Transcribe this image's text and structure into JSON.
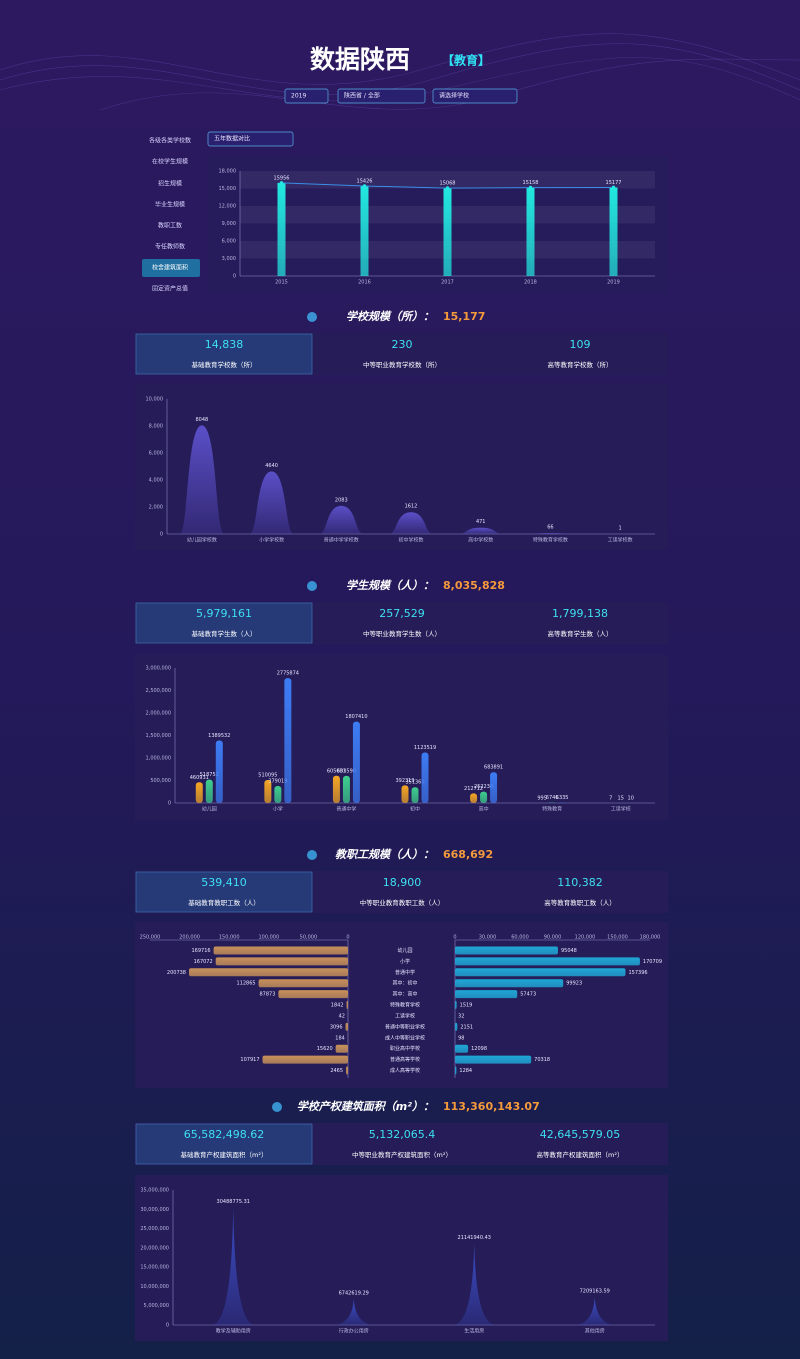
{
  "header": {
    "title": "数据陕西",
    "tag": "【教育】",
    "filters": [
      "2019",
      "陕西省 / 全部",
      "请选择学校"
    ]
  },
  "menu": {
    "items": [
      "各级各类学校数",
      "在校学生规模",
      "招生规模",
      "毕业生规模",
      "教职工数",
      "专任教师数",
      "校舍建筑面积",
      "固定资产总值"
    ],
    "active": 6,
    "compare": "五年数据对比"
  },
  "sections": [
    {
      "title": "学校规模（所）：",
      "total": "15,177",
      "cards": [
        {
          "value": "14,838",
          "label": "基础教育学校数（所）"
        },
        {
          "value": "230",
          "label": "中等职业教育学校数（所）"
        },
        {
          "value": "109",
          "label": "高等教育学校数（所）"
        }
      ]
    },
    {
      "title": "学生规模（人）：",
      "total": "8,035,828",
      "cards": [
        {
          "value": "5,979,161",
          "label": "基础教育学生数（人）"
        },
        {
          "value": "257,529",
          "label": "中等职业教育学生数（人）"
        },
        {
          "value": "1,799,138",
          "label": "高等教育学生数（人）"
        }
      ]
    },
    {
      "title": "教职工规模（人）：",
      "total": "668,692",
      "cards": [
        {
          "value": "539,410",
          "label": "基础教育教职工数（人）"
        },
        {
          "value": "18,900",
          "label": "中等职业教育教职工数（人）"
        },
        {
          "value": "110,382",
          "label": "高等教育教职工数（人）"
        }
      ]
    },
    {
      "title": "学校产权建筑面积（m²）：",
      "total": "113,360,143.07",
      "cards": [
        {
          "value": "65,582,498.62",
          "label": "基础教育产权建筑面积（m²）"
        },
        {
          "value": "5,132,065.4",
          "label": "中等职业教育产权建筑面积（m²）"
        },
        {
          "value": "42,645,579.05",
          "label": "高等教育产权建筑面积（m²）"
        }
      ]
    }
  ],
  "chart_data": [
    {
      "type": "bar",
      "categories": [
        "2015",
        "2016",
        "2017",
        "2018",
        "2019"
      ],
      "values": [
        15956,
        15426,
        15068,
        15158,
        15177
      ],
      "color": "#22e8e0",
      "line_color": "#3a8ee6",
      "line": true,
      "grid": true,
      "ylim": [
        0,
        18000
      ],
      "yticks": [
        0,
        {
          "value": 3000,
          "label": "3,000"
        },
        {
          "value": 6000,
          "label": "6,000"
        },
        {
          "value": 9000,
          "label": "9,000"
        },
        {
          "value": 12000,
          "label": "12,000"
        },
        {
          "value": 15000,
          "label": "15,000"
        },
        {
          "value": 18000,
          "label": "18,000"
        }
      ]
    },
    {
      "type": "pictorial",
      "symbol": "bell",
      "categories": [
        "幼儿园学校数",
        "小学学校数",
        "普通中学学校数",
        "初中学校数",
        "高中学校数",
        "特殊教育学校数",
        "工读学校数"
      ],
      "values": [
        8048,
        4640,
        2083,
        1612,
        471,
        66,
        1
      ],
      "color": "#5b4fc8",
      "ylim": [
        0,
        10000
      ],
      "yticks": [
        0,
        {
          "value": 2000,
          "label": "2,000"
        },
        {
          "value": 4000,
          "label": "4,000"
        },
        {
          "value": 6000,
          "label": "6,000"
        },
        {
          "value": 8000,
          "label": "8,000"
        },
        {
          "value": 10000,
          "label": "10,000"
        }
      ]
    },
    {
      "type": "bar",
      "categories": [
        "幼儿园",
        "小学",
        "普通中学",
        "初中",
        "高中",
        "特殊教育",
        "工读学校"
      ],
      "series": [
        {
          "color": "#f5a623",
          "values": [
            460931,
            510095,
            605031,
            392319,
            212712,
            995,
            7
          ]
        },
        {
          "color": "#3ecf8e",
          "values": [
            518751,
            379019,
            603590,
            351360,
            252230,
            6746,
            15
          ]
        },
        {
          "color": "#3d7cf5",
          "values": [
            1389532,
            2775874,
            1807410,
            1123519,
            683891,
            6335,
            10
          ]
        }
      ],
      "ylim": [
        0,
        3000000
      ],
      "yticks": [
        0,
        {
          "value": 500000,
          "label": "500,000"
        },
        {
          "value": 1000000,
          "label": "1,000,000"
        },
        {
          "value": 1500000,
          "label": "1,500,000"
        },
        {
          "value": 2000000,
          "label": "2,000,000"
        },
        {
          "value": 2500000,
          "label": "2,500,000"
        },
        {
          "value": 3000000,
          "label": "3,000,000"
        }
      ]
    },
    {
      "type": "butterfly",
      "categories": [
        "幼儿园",
        "小学",
        "普通中学",
        "其中：初中",
        "其中：高中",
        "特殊教育学校",
        "工读学校",
        "普通中等职业学校",
        "成人中等职业学校",
        "职业高中学校",
        "普通高等学校",
        "成人高等学校"
      ],
      "series": [
        {
          "color": "#c8915a",
          "values": [
            169716,
            167072,
            200738,
            112865,
            87873,
            1842,
            42,
            3096,
            184,
            15620,
            107917,
            2465
          ]
        },
        {
          "color": "#1fa7d6",
          "values": [
            95048,
            170709,
            157396,
            99923,
            57473,
            1519,
            32,
            2151,
            98,
            12098,
            70318,
            1284
          ]
        }
      ],
      "xlim": [
        0,
        250000
      ],
      "xticks": [
        {
          "value": 250000,
          "label": "250,000"
        },
        {
          "value": 200000,
          "label": "200,000"
        },
        {
          "value": 150000,
          "label": "150,000"
        },
        {
          "value": 100000,
          "label": "100,000"
        },
        {
          "value": 50000,
          "label": "50,000"
        },
        0
      ],
      "x2lim": [
        0,
        180000
      ],
      "x2ticks": [
        0,
        {
          "value": 30000,
          "label": "30,000"
        },
        {
          "value": 60000,
          "label": "60,000"
        },
        {
          "value": 90000,
          "label": "90,000"
        },
        {
          "value": 120000,
          "label": "120,000"
        },
        {
          "value": 150000,
          "label": "150,000"
        },
        {
          "value": 180000,
          "label": "180,000"
        }
      ]
    },
    {
      "type": "pictorial",
      "symbol": "spike",
      "categories": [
        "教学及辅助用房",
        "行政办公用房",
        "生活用房",
        "其他用房"
      ],
      "values": [
        30488775.31,
        6742619.29,
        21141940.43,
        7209163.59
      ],
      "color": "#3b4fc8",
      "ylim": [
        0,
        35000000
      ],
      "yticks": [
        0,
        {
          "value": 5000000,
          "label": "5,000,000"
        },
        {
          "value": 10000000,
          "label": "10,000,000"
        },
        {
          "value": 15000000,
          "label": "15,000,000"
        },
        {
          "value": 20000000,
          "label": "20,000,000"
        },
        {
          "value": 25000000,
          "label": "25,000,000"
        },
        {
          "value": 30000000,
          "label": "30,000,000"
        },
        {
          "value": 35000000,
          "label": "35,000,000"
        }
      ]
    }
  ]
}
